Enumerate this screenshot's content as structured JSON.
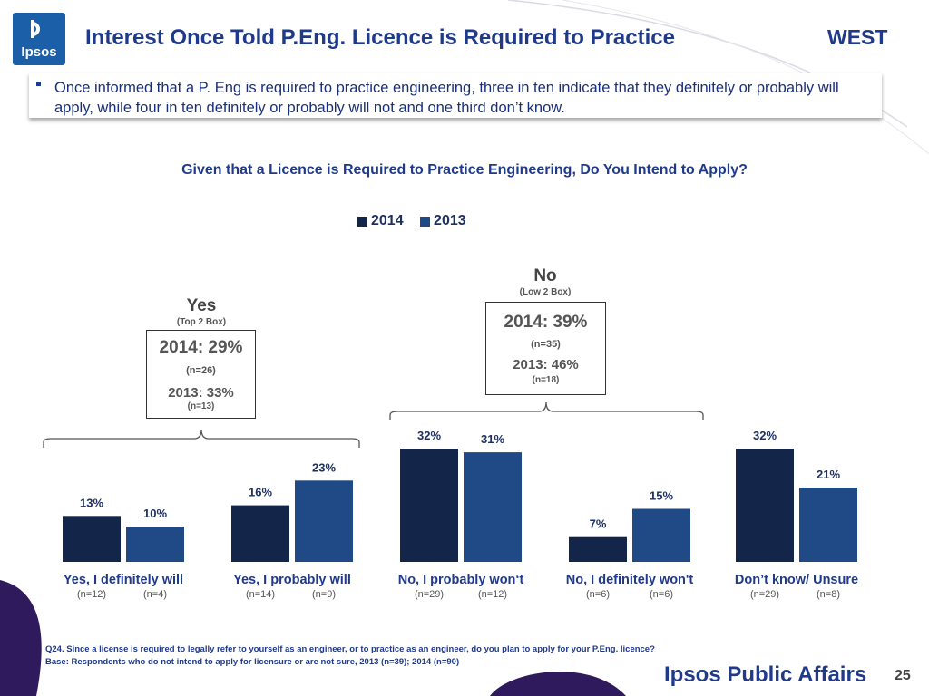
{
  "header": {
    "logo_text": "Ipsos",
    "title": "Interest Once Told P.Eng. Licence is Required to Practice",
    "region": "WEST"
  },
  "bullet": "Once informed that a P. Eng is required to practice engineering, three in ten indicate that they definitely or probably will apply, while four in ten definitely or probably will not and one third don’t know.",
  "summaries": {
    "yes": {
      "heading": "Yes",
      "sub": "(Top 2 Box)",
      "y2014": "2014: 29%",
      "n2014": "(n=26)",
      "y2013": "2013: 33%",
      "n2013": "(n=13)"
    },
    "no": {
      "heading": "No",
      "sub": "(Low 2 Box)",
      "y2014": "2014: 39%",
      "n2014": "(n=35)",
      "y2013": "2013: 46%",
      "n2013": "(n=18)"
    }
  },
  "colors": {
    "y2014": "#14254a",
    "y2013": "#1f4a86",
    "title": "#1f3a8a"
  },
  "chart_data": {
    "type": "bar",
    "title": "Given that a Licence is Required to Practice Engineering, Do You Intend to Apply?",
    "categories": [
      "Yes, I definitely will",
      "Yes, I probably will",
      "No, I probably won‘t",
      "No, I definitely won't",
      "Don’t know/ Unsure"
    ],
    "series": [
      {
        "name": "2014",
        "values": [
          13,
          16,
          32,
          7,
          32
        ],
        "labels": [
          "13%",
          "16%",
          "32%",
          "7%",
          "32%"
        ],
        "n": [
          "(n=12)",
          "(n=14)",
          "(n=29)",
          "(n=6)",
          "(n=29)"
        ]
      },
      {
        "name": "2013",
        "values": [
          10,
          23,
          31,
          15,
          21
        ],
        "labels": [
          "10%",
          "23%",
          "31%",
          "15%",
          "21%"
        ],
        "n": [
          "(n=4)",
          "(n=9)",
          "(n=12)",
          "(n=6)",
          "(n=8)"
        ]
      }
    ],
    "ylim": [
      0,
      35
    ],
    "legend": "top-center"
  },
  "footnote": {
    "line1": "Q24. Since a license is required to legally refer to yourself as an engineer, or to practice as an engineer, do you plan to apply for your P.Eng. licence?",
    "line2": "Base: Respondents who do not intend to apply for licensure or are not sure, 2013 (n=39); 2014 (n=90)"
  },
  "brand": "Ipsos Public Affairs",
  "page_number": "25"
}
